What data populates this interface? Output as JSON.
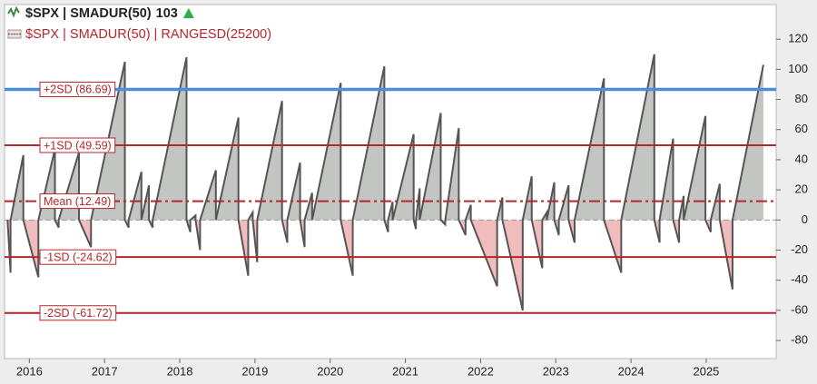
{
  "chart_data": {
    "type": "line",
    "legend": [
      {
        "label": "$SPX | SMADUR(50)",
        "value": 103
      },
      {
        "label": "$SPX | SMADUR(50) | RANGESD(25200)"
      }
    ],
    "xlim": [
      2015.67,
      2025.93
    ],
    "xticks": [
      2016,
      2017,
      2018,
      2019,
      2020,
      2021,
      2022,
      2023,
      2024,
      2025
    ],
    "ylim": [
      -92,
      143
    ],
    "yticks": [
      -80,
      -60,
      -40,
      -20,
      0,
      20,
      40,
      60,
      80,
      100,
      120
    ],
    "line_color": "#555555",
    "positive_fill": "#c2c5c2",
    "negative_fill": "#f1bcbc",
    "x": [
      2015.71,
      2015.75,
      2015.75,
      2015.92,
      2015.92,
      2016.12,
      2016.12,
      2016.34,
      2016.34,
      2016.39,
      2016.39,
      2016.66,
      2016.66,
      2016.82,
      2016.82,
      2017.27,
      2017.27,
      2017.32,
      2017.32,
      2017.49,
      2017.49,
      2017.59,
      2017.59,
      2017.64,
      2017.64,
      2018.09,
      2018.09,
      2018.14,
      2018.14,
      2018.21,
      2018.21,
      2018.27,
      2018.27,
      2018.48,
      2018.48,
      2018.78,
      2018.78,
      2018.91,
      2018.91,
      2018.97,
      2018.97,
      2019.03,
      2019.03,
      2019.36,
      2019.36,
      2019.43,
      2019.43,
      2019.6,
      2019.6,
      2019.66,
      2019.66,
      2019.76,
      2019.76,
      2020.14,
      2020.14,
      2020.3,
      2020.3,
      2020.72,
      2020.72,
      2020.77,
      2020.77,
      2020.83,
      2020.83,
      2021.11,
      2021.11,
      2021.14,
      2021.14,
      2021.19,
      2021.19,
      2021.47,
      2021.47,
      2021.53,
      2021.53,
      2021.71,
      2021.71,
      2021.8,
      2021.8,
      2021.87,
      2021.87,
      2022.22,
      2022.22,
      2022.29,
      2022.29,
      2022.56,
      2022.56,
      2022.68,
      2022.68,
      2022.82,
      2022.82,
      2022.88,
      2022.88,
      2022.98,
      2022.98,
      2023.04,
      2023.04,
      2023.17,
      2023.17,
      2023.25,
      2023.25,
      2023.64,
      2023.64,
      2023.87,
      2023.87,
      2024.31,
      2024.31,
      2024.38,
      2024.38,
      2024.56,
      2024.56,
      2024.64,
      2024.64,
      2024.7,
      2024.7,
      2024.99,
      2024.99,
      2025.06,
      2025.06,
      2025.18,
      2025.18,
      2025.35,
      2025.35,
      2025.76
    ],
    "values": [
      0,
      -35,
      0,
      43,
      0,
      -38,
      0,
      47,
      0,
      -5,
      0,
      45,
      0,
      -18,
      0,
      105,
      0,
      -5,
      0,
      32,
      0,
      23,
      0,
      -5,
      0,
      108,
      0,
      -8,
      0,
      3,
      0,
      -20,
      0,
      33,
      0,
      68,
      0,
      -37,
      0,
      5,
      0,
      -28,
      0,
      79,
      0,
      -15,
      0,
      38,
      0,
      -18,
      0,
      18,
      0,
      91,
      0,
      -37,
      0,
      102,
      0,
      -8,
      0,
      12,
      0,
      57,
      0,
      -6,
      0,
      21,
      0,
      71,
      0,
      -3,
      0,
      61,
      0,
      -10,
      0,
      10,
      0,
      -44,
      0,
      15,
      0,
      -60,
      0,
      29,
      0,
      -32,
      0,
      5,
      0,
      25,
      0,
      -10,
      0,
      23,
      0,
      -15,
      0,
      94,
      0,
      -35,
      0,
      110,
      0,
      -15,
      0,
      54,
      0,
      -15,
      0,
      16,
      0,
      69,
      0,
      -8,
      0,
      24,
      0,
      -46,
      0,
      103
    ],
    "reference_lines": [
      {
        "label": "+2SD (86.69)",
        "value": 86.69,
        "color": "#4a8fde",
        "style": "solid"
      },
      {
        "label": "+1SD (49.59)",
        "value": 49.59,
        "color": "#b3262a",
        "style": "solid"
      },
      {
        "label": "Mean (12.49)",
        "value": 12.49,
        "color": "#b3262a",
        "style": "dashdot"
      },
      {
        "label": "-1SD (-24.62)",
        "value": -24.62,
        "color": "#b3262a",
        "style": "solid"
      },
      {
        "label": "-2SD (-61.72)",
        "value": -61.72,
        "color": "#b3262a",
        "style": "solid"
      }
    ]
  }
}
